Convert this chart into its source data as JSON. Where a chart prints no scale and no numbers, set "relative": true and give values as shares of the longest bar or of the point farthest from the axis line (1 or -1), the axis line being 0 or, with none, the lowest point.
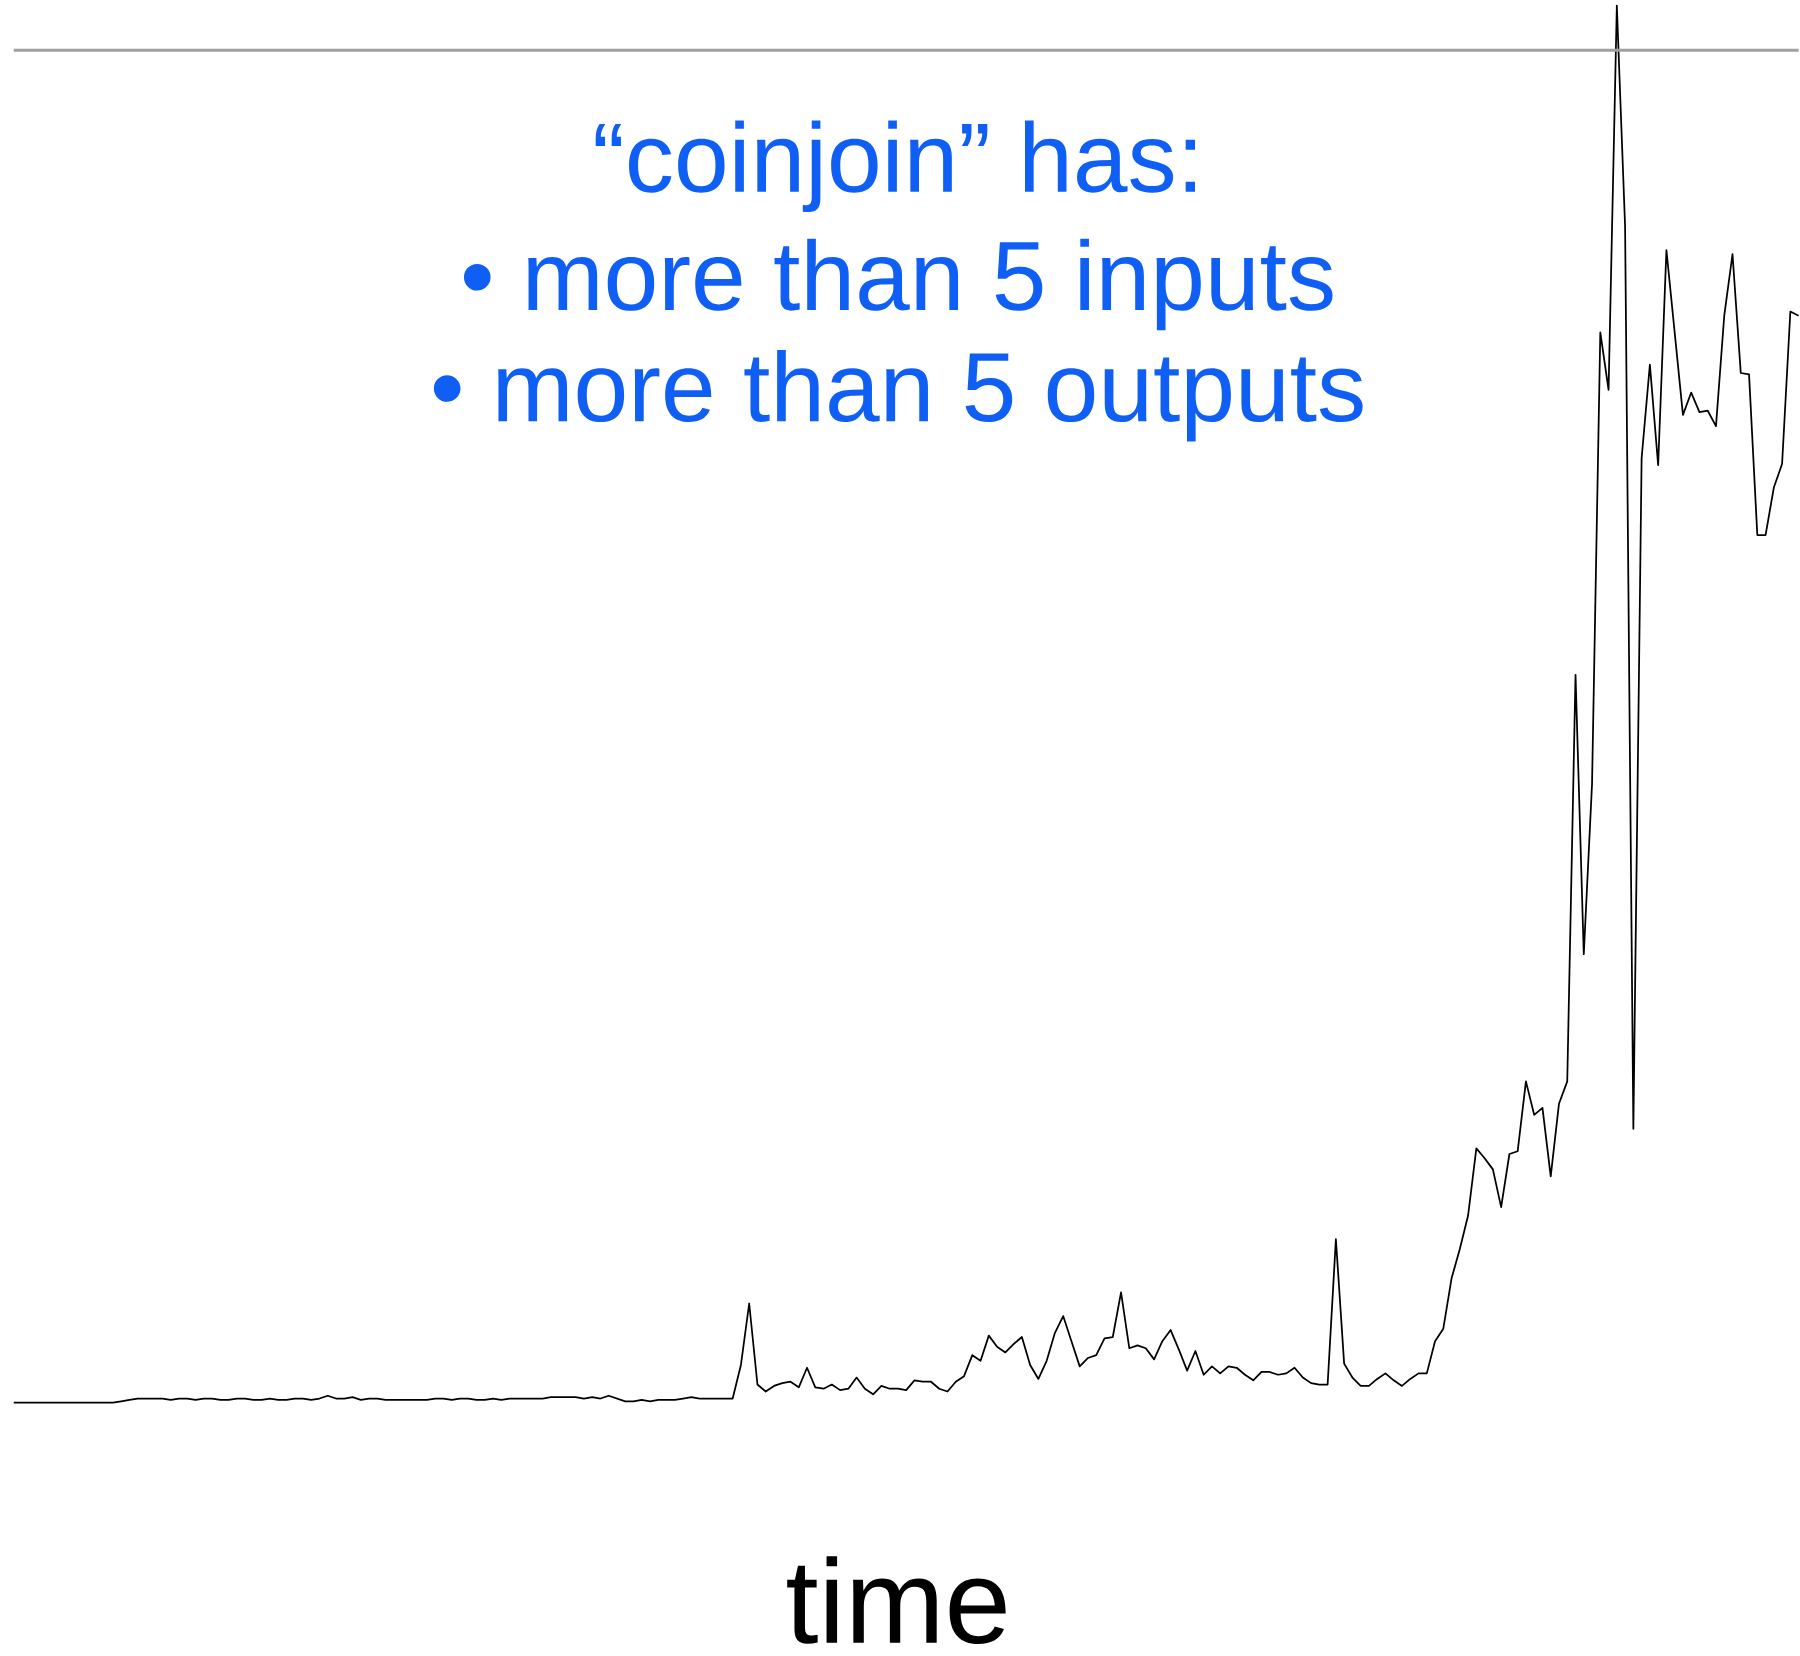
{
  "chart_data": {
    "type": "line",
    "relative": true,
    "xlabel": "time",
    "annotations": [
      "“coinjoin” has:",
      "•   more than 5 inputs",
      "•  more than 5 outputs"
    ],
    "ref_lines": [
      {
        "axis": "y",
        "value": 0.968,
        "color": "#a0a0a0"
      }
    ],
    "categories": [
      null,
      null,
      null,
      null,
      null,
      null,
      null,
      null,
      null,
      null,
      null,
      null,
      null,
      null,
      null,
      null,
      null,
      null,
      null,
      null,
      null,
      null,
      null,
      null,
      null,
      null,
      null,
      null,
      null,
      null,
      null,
      null,
      null,
      null,
      null,
      null,
      null,
      null,
      null,
      null,
      null,
      null,
      null,
      null,
      null,
      null,
      null,
      null,
      null,
      null,
      null,
      null,
      null,
      null,
      null,
      null,
      null,
      null,
      null,
      null,
      null,
      null,
      null,
      null,
      null,
      null,
      null,
      null,
      null,
      null,
      null,
      null,
      null,
      null,
      null,
      null,
      null,
      null,
      null,
      null,
      null,
      null,
      null,
      null,
      null,
      null,
      null,
      null,
      null,
      null,
      null,
      null,
      null,
      null,
      null,
      null,
      null,
      null,
      null,
      null,
      null,
      null,
      null,
      null,
      null,
      null,
      null,
      null,
      null,
      null,
      null,
      null,
      null,
      null,
      null,
      null,
      null,
      null,
      null,
      null,
      null,
      null,
      null,
      null,
      null,
      null,
      null,
      null,
      null,
      null,
      null,
      null,
      null,
      null,
      null,
      null,
      null,
      null,
      null,
      null,
      null,
      null,
      null,
      null,
      null,
      null,
      null,
      null,
      null,
      null,
      null,
      null,
      null,
      null,
      null,
      null,
      null,
      null,
      null,
      null,
      null,
      null,
      null,
      null,
      null,
      null,
      null,
      null,
      null,
      null,
      null,
      null,
      null,
      null,
      null,
      null,
      null,
      null,
      null,
      null,
      null,
      null,
      null,
      null,
      null,
      null,
      null,
      null,
      null,
      null,
      null,
      null,
      null,
      null,
      null,
      null,
      null,
      null,
      null,
      null,
      null,
      null,
      null,
      null,
      null,
      null,
      null,
      null,
      null,
      null,
      null,
      null,
      null,
      null,
      null,
      null,
      null
    ],
    "series": [
      {
        "color": "#000000",
        "values": [
          0,
          0,
          0,
          0,
          0,
          0,
          0,
          0,
          0,
          0,
          0,
          0,
          0,
          0.001,
          0.002,
          0.003,
          0.003,
          0.003,
          0.003,
          0.002,
          0.003,
          0.003,
          0.002,
          0.003,
          0.003,
          0.002,
          0.002,
          0.003,
          0.003,
          0.002,
          0.002,
          0.003,
          0.002,
          0.002,
          0.003,
          0.003,
          0.002,
          0.003,
          0.005,
          0.003,
          0.003,
          0.004,
          0.002,
          0.003,
          0.003,
          0.002,
          0.002,
          0.002,
          0.002,
          0.002,
          0.002,
          0.003,
          0.003,
          0.002,
          0.003,
          0.003,
          0.002,
          0.002,
          0.003,
          0.002,
          0.003,
          0.003,
          0.003,
          0.003,
          0.003,
          0.004,
          0.004,
          0.004,
          0.004,
          0.003,
          0.004,
          0.003,
          0.005,
          0.003,
          0.001,
          0.001,
          0.002,
          0.001,
          0.002,
          0.002,
          0.002,
          0.003,
          0.004,
          0.003,
          0.003,
          0.003,
          0.003,
          0.003,
          0.027,
          0.071,
          0.013,
          0.008,
          0.012,
          0.014,
          0.015,
          0.011,
          0.025,
          0.011,
          0.01,
          0.013,
          0.009,
          0.01,
          0.018,
          0.01,
          0.006,
          0.012,
          0.01,
          0.01,
          0.009,
          0.016,
          0.015,
          0.015,
          0.01,
          0.008,
          0.015,
          0.019,
          0.034,
          0.03,
          0.048,
          0.04,
          0.036,
          0.042,
          0.047,
          0.027,
          0.017,
          0.03,
          0.05,
          0.062,
          0.044,
          0.026,
          0.032,
          0.034,
          0.046,
          0.047,
          0.079,
          0.039,
          0.041,
          0.039,
          0.031,
          0.044,
          0.052,
          0.038,
          0.023,
          0.037,
          0.02,
          0.026,
          0.021,
          0.026,
          0.025,
          0.02,
          0.016,
          0.022,
          0.022,
          0.02,
          0.021,
          0.025,
          0.018,
          0.014,
          0.013,
          0.013,
          0.117,
          0.028,
          0.018,
          0.012,
          0.012,
          0.017,
          0.021,
          0.016,
          0.012,
          0.017,
          0.021,
          0.021,
          0.044,
          0.053,
          0.089,
          0.11,
          0.134,
          0.182,
          0.175,
          0.167,
          0.14,
          0.178,
          0.18,
          0.23,
          0.206,
          0.211,
          0.162,
          0.214,
          0.23,
          0.521,
          0.321,
          0.443,
          0.766,
          0.725,
          1.0,
          0.842,
          0.196,
          0.676,
          0.743,
          0.671,
          0.825,
          0.766,
          0.707,
          0.723,
          0.709,
          0.71,
          0.699,
          0.778,
          0.822,
          0.737,
          0.736,
          0.621,
          0.621,
          0.655,
          0.672,
          0.781,
          0.778
        ]
      }
    ]
  }
}
